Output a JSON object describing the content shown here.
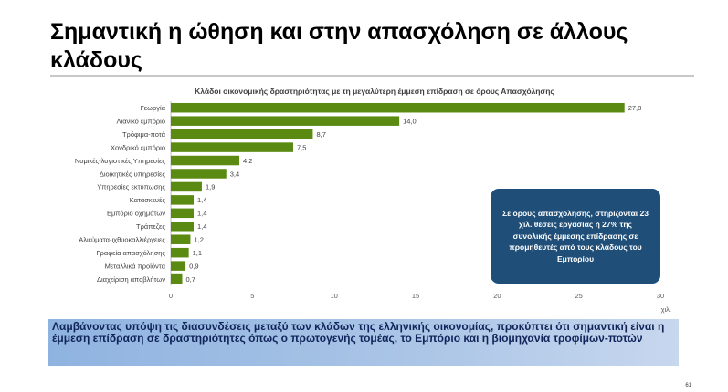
{
  "slide": {
    "title": "Σημαντική η ώθηση και στην απασχόληση σε άλλους κλάδους",
    "page_number": "61"
  },
  "chart_data": {
    "type": "bar",
    "orientation": "horizontal",
    "title": "Κλάδοι οικονομικής δραστηριότητας με τη μεγαλύτερη έμμεση επίδραση σε όρους Απασχόλησης",
    "categories": [
      "Γεωργία",
      "Λιανικό εμπόριο",
      "Τρόφιμα-ποτά",
      "Χονδρικό εμπόριο",
      "Νομικές-λογιστικές Υπηρεσίες",
      "Διοικητικές υπηρεσίες",
      "Υπηρεσίες εκτύπωσης",
      "Κατασκευές",
      "Εμπόριο οχημάτων",
      "Τράπεζες",
      "Αλιεύματα-ιχθυοκαλλιέργειες",
      "Γραφεία απασχόλησης",
      "Μεταλλικά προϊόντα",
      "Διαχείριση αποβλήτων"
    ],
    "values": [
      27.8,
      14.0,
      8.7,
      7.5,
      4.2,
      3.4,
      1.9,
      1.4,
      1.4,
      1.4,
      1.2,
      1.1,
      0.9,
      0.7
    ],
    "value_labels": [
      "27,8",
      "14,0",
      "8,7",
      "7,5",
      "4,2",
      "3,4",
      "1,9",
      "1,4",
      "1,4",
      "1,4",
      "1,2",
      "1,1",
      "0,9",
      "0,7"
    ],
    "xlim": [
      0,
      30
    ],
    "xticks": [
      0,
      5,
      10,
      15,
      20,
      25,
      30
    ],
    "x_unit": "χιλ.",
    "bar_color": "#5b8a12",
    "grid": false
  },
  "callout": {
    "text": "Σε όρους απασχόλησης, στηρίζονται 23 χιλ. θέσεις εργασίας ή 27% της συνολικής έμμεσης επίδρασης σε προμηθευτές από τους κλάδους του Εμπορίου",
    "color": "#1f4e79"
  },
  "conclusion": {
    "text": "Λαμβάνοντας υπόψη τις διασυνδέσεις μεταξύ των κλάδων της ελληνικής οικονομίας,  προκύπτει ότι σημαντική είναι η έμμεση επίδραση σε δραστηριότητες όπως ο πρωτογενής τομέας, το Εμπόριο και η βιομηχανία τροφίμων-ποτών"
  }
}
